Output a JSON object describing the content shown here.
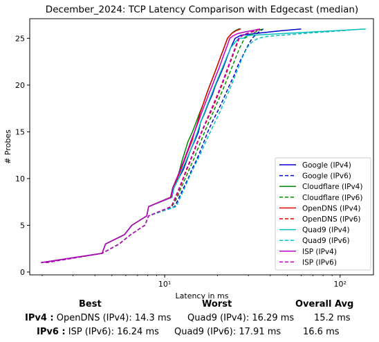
{
  "chart_data": {
    "type": "line",
    "title": "December_2024: TCP Latency Comparison with Edgecast (median)",
    "xlabel": "Latency in ms",
    "ylabel": "# Probes",
    "xscale": "log",
    "xlim": [
      1.7,
      155
    ],
    "ylim": [
      -0.3,
      27.1
    ],
    "x_ticks": [
      {
        "value": 10,
        "label": "10¹"
      },
      {
        "value": 100,
        "label": "10²"
      }
    ],
    "y_ticks": [
      0,
      5,
      10,
      15,
      20,
      25
    ],
    "legend_position": "lower-right",
    "grid": false,
    "series": [
      {
        "name": "Google (IPv4)",
        "color": "#0000cc",
        "dash": "solid",
        "x": [
          1.97,
          4.4,
          4.6,
          5.9,
          6.5,
          7.9,
          8.1,
          11.0,
          11.2,
          12.0,
          12.8,
          13.4,
          14.0,
          14.8,
          15.6,
          16.0,
          16.9,
          17.7,
          18.7,
          19.5,
          20.6,
          21.7,
          22.7,
          23.8,
          25.2,
          27.0,
          29.0,
          36.0,
          45.0,
          60.0
        ],
        "y": [
          1,
          2,
          3,
          4,
          5,
          6,
          7,
          8,
          9,
          10,
          11,
          12,
          13,
          14,
          15,
          16,
          17,
          18,
          19,
          20,
          21,
          22,
          23,
          24,
          25,
          25.3,
          25.4,
          25.6,
          25.8,
          26
        ]
      },
      {
        "name": "Google (IPv6)",
        "color": "#0000cc",
        "dash": "dashed",
        "x": [
          2.1,
          4.4,
          5.5,
          6.4,
          7.7,
          8.1,
          11.4,
          12.1,
          12.8,
          13.6,
          14.3,
          15.2,
          16.0,
          16.8,
          17.6,
          18.6,
          19.8,
          21.0,
          22.2,
          23.4,
          24.8,
          26.0,
          27.6,
          29.4,
          31.5,
          33.5,
          35.0,
          36.5
        ],
        "y": [
          1,
          2,
          3,
          4,
          5,
          6,
          7,
          8,
          9,
          10,
          11,
          12,
          13,
          14,
          15,
          16,
          17,
          18,
          19,
          20,
          21,
          22,
          23,
          24,
          25,
          25.5,
          25.8,
          26
        ]
      },
      {
        "name": "Cloudflare (IPv4)",
        "color": "#008800",
        "dash": "solid",
        "x": [
          1.97,
          4.4,
          4.6,
          5.9,
          6.5,
          7.9,
          8.1,
          10.8,
          11.1,
          11.8,
          12.2,
          12.6,
          13.1,
          13.6,
          14.4,
          15.1,
          15.8,
          16.6,
          17.3,
          18.1,
          19.0,
          19.9,
          20.8,
          21.8,
          22.8,
          24.0,
          25.1,
          26.4,
          27.2
        ],
        "y": [
          1,
          2,
          3,
          4,
          5,
          6,
          7,
          8,
          9,
          10,
          11,
          12,
          13,
          14,
          15,
          16,
          17,
          18,
          19,
          20,
          21,
          22,
          23,
          24,
          25,
          25.5,
          25.8,
          26,
          26
        ]
      },
      {
        "name": "Cloudflare (IPv6)",
        "color": "#008800",
        "dash": "dashed",
        "x": [
          2.1,
          4.4,
          5.5,
          6.4,
          7.7,
          8.1,
          11.0,
          11.8,
          12.4,
          13.1,
          13.8,
          14.6,
          15.3,
          16.1,
          16.9,
          17.8,
          18.8,
          19.8,
          20.9,
          22.0,
          23.1,
          24.3,
          25.5,
          26.8,
          28.5,
          33.0,
          36.0
        ],
        "y": [
          1,
          2,
          3,
          4,
          5,
          6,
          7,
          8,
          9,
          10,
          11,
          12,
          13,
          14,
          15,
          16,
          17,
          18,
          19,
          20,
          21,
          22,
          23,
          24,
          25,
          25.7,
          26
        ]
      },
      {
        "name": "OpenDNS (IPv4)",
        "color": "#dd0000",
        "dash": "solid",
        "x": [
          1.97,
          4.4,
          4.6,
          5.9,
          6.5,
          7.9,
          8.1,
          10.8,
          11.2,
          11.8,
          12.4,
          13.0,
          13.6,
          14.3,
          14.8,
          15.4,
          15.9,
          16.6,
          17.3,
          18.1,
          19.0,
          19.9,
          20.8,
          21.8,
          22.8,
          24.0,
          25.4,
          27.0
        ],
        "y": [
          1,
          2,
          3,
          4,
          5,
          6,
          7,
          8,
          9,
          10,
          11,
          12,
          13,
          14,
          15,
          16,
          17,
          18,
          19,
          20,
          21,
          22,
          23,
          24,
          25,
          25.5,
          25.8,
          26
        ]
      },
      {
        "name": "OpenDNS (IPv6)",
        "color": "#dd0000",
        "dash": "dashed",
        "x": [
          2.1,
          4.4,
          5.5,
          6.4,
          7.7,
          8.1,
          10.9,
          11.6,
          12.2,
          12.8,
          13.4,
          14.1,
          14.8,
          15.5,
          16.3,
          17.2,
          18.2,
          19.2,
          20.2,
          21.2,
          22.2,
          23.2,
          24.3,
          25.4,
          26.6,
          28.0,
          30.5,
          33.0,
          35.0
        ],
        "y": [
          1,
          2,
          3,
          4,
          5,
          6,
          7,
          8,
          9,
          10,
          11,
          12,
          13,
          14,
          15,
          16,
          17,
          18,
          19,
          20,
          21,
          22,
          23,
          24,
          25,
          25.4,
          25.6,
          25.8,
          26
        ]
      },
      {
        "name": "Quad9 (IPv4)",
        "color": "#00c0c0",
        "dash": "solid",
        "x": [
          1.97,
          4.4,
          4.6,
          5.9,
          6.5,
          7.9,
          8.1,
          11.0,
          11.3,
          12.0,
          12.6,
          13.3,
          14.0,
          14.7,
          15.4,
          16.0,
          16.8,
          17.6,
          18.5,
          19.4,
          20.4,
          21.5,
          22.6,
          23.8,
          25.0,
          26.4,
          28.0,
          29.5,
          140.0
        ],
        "y": [
          1,
          2,
          3,
          4,
          5,
          6,
          7,
          8,
          9,
          10,
          11,
          12,
          13,
          14,
          15,
          16,
          17,
          18,
          19,
          20,
          21,
          22,
          23,
          24,
          24.5,
          25,
          25,
          25.3,
          26
        ]
      },
      {
        "name": "Quad9 (IPv6)",
        "color": "#00c0c0",
        "dash": "dashed",
        "x": [
          2.1,
          4.4,
          5.5,
          6.4,
          7.7,
          8.1,
          11.6,
          12.3,
          13.0,
          13.7,
          14.5,
          15.4,
          16.3,
          17.2,
          18.2,
          19.3,
          20.5,
          21.6,
          22.8,
          24.0,
          25.2,
          26.5,
          27.8,
          29.5,
          31.5,
          34.0,
          38.0,
          60.0,
          100.0,
          135.0
        ],
        "y": [
          1,
          2,
          3,
          4,
          5,
          6,
          7,
          8,
          9,
          10,
          11,
          12,
          13,
          14,
          15,
          16,
          17,
          18,
          19,
          20,
          21,
          22,
          23,
          24,
          24.6,
          25,
          25.2,
          25.5,
          25.8,
          26
        ]
      },
      {
        "name": "ISP (IPv4)",
        "color": "#bb00bb",
        "dash": "solid",
        "x": [
          1.97,
          4.4,
          4.6,
          5.9,
          6.5,
          7.9,
          8.1,
          10.9,
          11.1,
          11.7,
          12.3,
          12.9,
          13.5,
          14.1,
          14.8,
          15.5,
          16.2,
          17.0,
          17.8,
          18.7,
          19.6,
          20.6,
          21.5,
          22.5,
          23.5,
          24.7,
          26.0,
          29.0,
          33.0,
          35.0
        ],
        "y": [
          1,
          2,
          3,
          4,
          5,
          6,
          7,
          8,
          9,
          10,
          11,
          12,
          13,
          14,
          15,
          16,
          17,
          18,
          19,
          20,
          21,
          22,
          23,
          24,
          25,
          25.3,
          25.5,
          25.7,
          25.9,
          26
        ]
      },
      {
        "name": "ISP (IPv6)",
        "color": "#bb00bb",
        "dash": "dashed",
        "x": [
          2.1,
          4.4,
          5.5,
          6.4,
          7.7,
          8.1,
          10.9,
          11.5,
          12.1,
          12.7,
          13.3,
          14.0,
          14.7,
          15.4,
          16.2,
          17.1,
          18.0,
          19.0,
          20.0,
          21.0,
          22.0,
          23.0,
          24.1,
          25.2,
          26.4,
          27.8,
          30.0,
          32.5,
          34.5
        ],
        "y": [
          1,
          2,
          3,
          4,
          5,
          6,
          7,
          8,
          9,
          10,
          11,
          12,
          13,
          14,
          15,
          16,
          17,
          18,
          19,
          20,
          21,
          22,
          23,
          24,
          25,
          25.3,
          25.6,
          25.8,
          26
        ]
      }
    ]
  },
  "stats": {
    "headers": {
      "best": "Best",
      "worst": "Worst",
      "avg": "Overall Avg"
    },
    "ipv4": {
      "label": "IPv4 :",
      "best": "OpenDNS (IPv4): 14.3 ms",
      "worst": "Quad9 (IPv4): 16.29 ms",
      "avg": "15.2 ms"
    },
    "ipv6": {
      "label": "IPv6 :",
      "best": "ISP (IPv6): 16.24 ms",
      "worst": "Quad9 (IPv6): 17.91 ms",
      "avg": "16.6 ms"
    }
  }
}
